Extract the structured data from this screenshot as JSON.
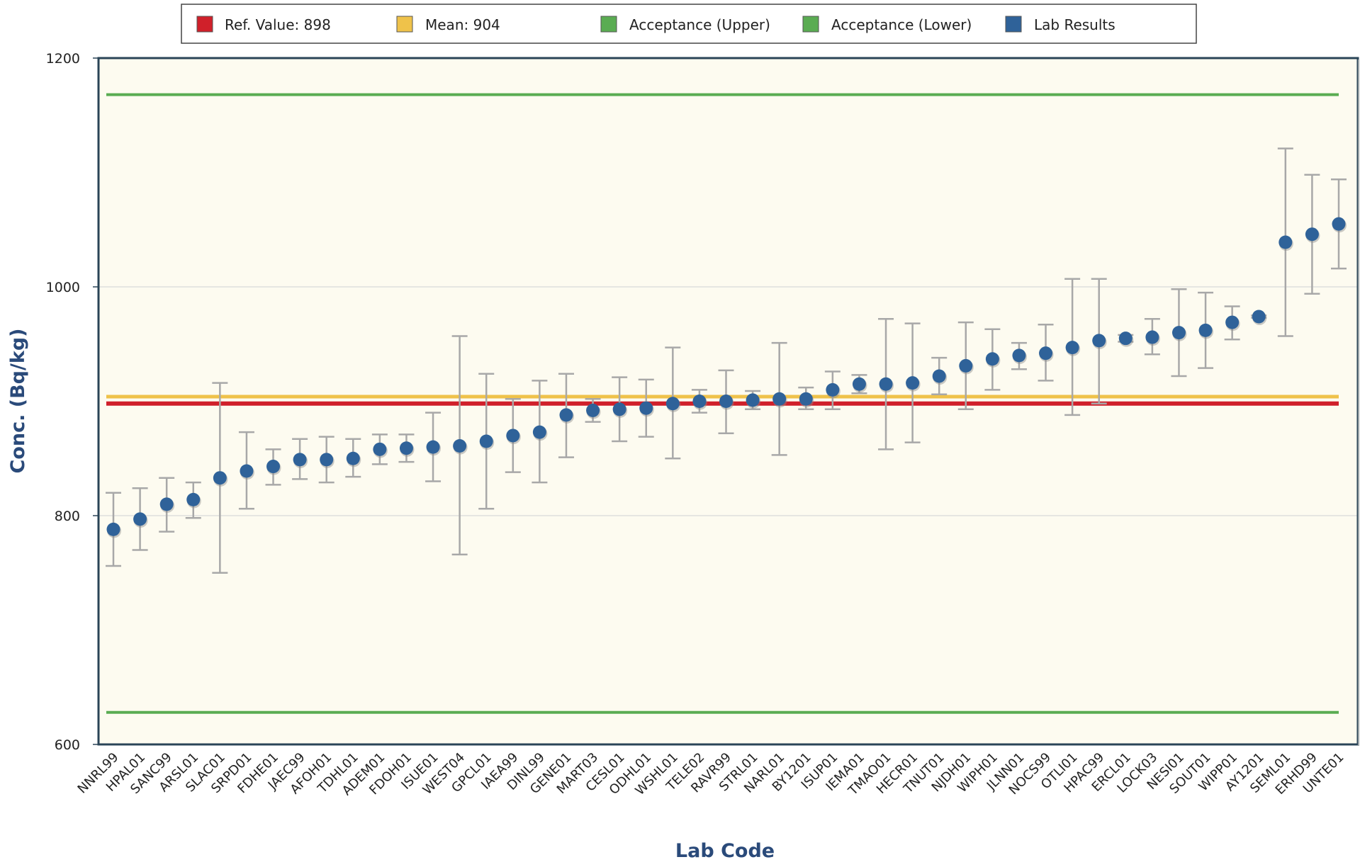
{
  "legend": {
    "items": [
      {
        "label": "Ref. Value: 898",
        "color": "#d0202a"
      },
      {
        "label": "Mean: 904",
        "color": "#efc24a"
      },
      {
        "label": "Acceptance (Upper)",
        "color": "#5aac52"
      },
      {
        "label": "Acceptance (Lower)",
        "color": "#5aac52"
      },
      {
        "label": "Lab Results",
        "color": "#2f6299"
      }
    ]
  },
  "chart_data": {
    "type": "scatter",
    "xlabel": "Lab Code",
    "ylabel": "Conc. (Bq/kg)",
    "ylim": [
      600,
      1200
    ],
    "yticks": [
      600,
      800,
      1000,
      1200
    ],
    "grid": true,
    "legend_position": "top",
    "plot_background": "#fdfbf0",
    "marker_color": "#2f6299",
    "errorbar_color": "#a8a8a8",
    "reference_lines": [
      {
        "name": "Ref. Value: 898",
        "value": 898,
        "color": "#d0202a"
      },
      {
        "name": "Mean: 904",
        "value": 904,
        "color": "#efc24a"
      },
      {
        "name": "Acceptance (Upper)",
        "value": 1168,
        "color": "#5aac52"
      },
      {
        "name": "Acceptance (Lower)",
        "value": 628,
        "color": "#5aac52"
      }
    ],
    "series": [
      {
        "name": "Lab Results",
        "points": [
          {
            "lab": "NNRL99",
            "value": 788,
            "low": 756,
            "high": 820
          },
          {
            "lab": "HPAL01",
            "value": 797,
            "low": 770,
            "high": 824
          },
          {
            "lab": "SANC99",
            "value": 810,
            "low": 786,
            "high": 833
          },
          {
            "lab": "ARSL01",
            "value": 814,
            "low": 798,
            "high": 829
          },
          {
            "lab": "SLAC01",
            "value": 833,
            "low": 750,
            "high": 916
          },
          {
            "lab": "SRPD01",
            "value": 839,
            "low": 806,
            "high": 873
          },
          {
            "lab": "FDHE01",
            "value": 843,
            "low": 827,
            "high": 858
          },
          {
            "lab": "JAEC99",
            "value": 849,
            "low": 832,
            "high": 867
          },
          {
            "lab": "AFOH01",
            "value": 849,
            "low": 829,
            "high": 869
          },
          {
            "lab": "TDHL01",
            "value": 850,
            "low": 834,
            "high": 867
          },
          {
            "lab": "ADEM01",
            "value": 858,
            "low": 845,
            "high": 871
          },
          {
            "lab": "FDOH01",
            "value": 859,
            "low": 847,
            "high": 871
          },
          {
            "lab": "ISUE01",
            "value": 860,
            "low": 830,
            "high": 890
          },
          {
            "lab": "WEST04",
            "value": 861,
            "low": 766,
            "high": 957
          },
          {
            "lab": "GPCL01",
            "value": 865,
            "low": 806,
            "high": 924
          },
          {
            "lab": "IAEA99",
            "value": 870,
            "low": 838,
            "high": 902
          },
          {
            "lab": "DINL99",
            "value": 873,
            "low": 829,
            "high": 918
          },
          {
            "lab": "GENE01",
            "value": 888,
            "low": 851,
            "high": 924
          },
          {
            "lab": "MART03",
            "value": 892,
            "low": 882,
            "high": 902
          },
          {
            "lab": "CESL01",
            "value": 893,
            "low": 865,
            "high": 921
          },
          {
            "lab": "ODHL01",
            "value": 894,
            "low": 869,
            "high": 919
          },
          {
            "lab": "WSHL01",
            "value": 898,
            "low": 850,
            "high": 947
          },
          {
            "lab": "TELE02",
            "value": 900,
            "low": 890,
            "high": 910
          },
          {
            "lab": "RAVR99",
            "value": 900,
            "low": 872,
            "high": 927
          },
          {
            "lab": "STRL01",
            "value": 901,
            "low": 893,
            "high": 909
          },
          {
            "lab": "NARL01",
            "value": 902,
            "low": 853,
            "high": 951
          },
          {
            "lab": "BY1201",
            "value": 902,
            "low": 893,
            "high": 912
          },
          {
            "lab": "ISUP01",
            "value": 910,
            "low": 893,
            "high": 926
          },
          {
            "lab": "IEMA01",
            "value": 915,
            "low": 907,
            "high": 923
          },
          {
            "lab": "TMAO01",
            "value": 915,
            "low": 858,
            "high": 972
          },
          {
            "lab": "HECR01",
            "value": 916,
            "low": 864,
            "high": 968
          },
          {
            "lab": "TNUT01",
            "value": 922,
            "low": 906,
            "high": 938
          },
          {
            "lab": "NJDH01",
            "value": 931,
            "low": 893,
            "high": 969
          },
          {
            "lab": "WIPH01",
            "value": 937,
            "low": 910,
            "high": 963
          },
          {
            "lab": "JLNN01",
            "value": 940,
            "low": 928,
            "high": 951
          },
          {
            "lab": "NOCS99",
            "value": 942,
            "low": 918,
            "high": 967
          },
          {
            "lab": "OTLI01",
            "value": 947,
            "low": 888,
            "high": 1007
          },
          {
            "lab": "HPAC99",
            "value": 953,
            "low": 898,
            "high": 1007
          },
          {
            "lab": "ERCL01",
            "value": 955,
            "low": 952,
            "high": 958
          },
          {
            "lab": "LOCK03",
            "value": 956,
            "low": 941,
            "high": 972
          },
          {
            "lab": "NESI01",
            "value": 960,
            "low": 922,
            "high": 998
          },
          {
            "lab": "SOUT01",
            "value": 962,
            "low": 929,
            "high": 995
          },
          {
            "lab": "WIPP01",
            "value": 969,
            "low": 954,
            "high": 983
          },
          {
            "lab": "AY1201",
            "value": 974,
            "low": 973,
            "high": 975
          },
          {
            "lab": "SEML01",
            "value": 1039,
            "low": 957,
            "high": 1121
          },
          {
            "lab": "ERHD99",
            "value": 1046,
            "low": 994,
            "high": 1098
          },
          {
            "lab": "UNTE01",
            "value": 1055,
            "low": 1016,
            "high": 1094
          }
        ]
      }
    ]
  }
}
